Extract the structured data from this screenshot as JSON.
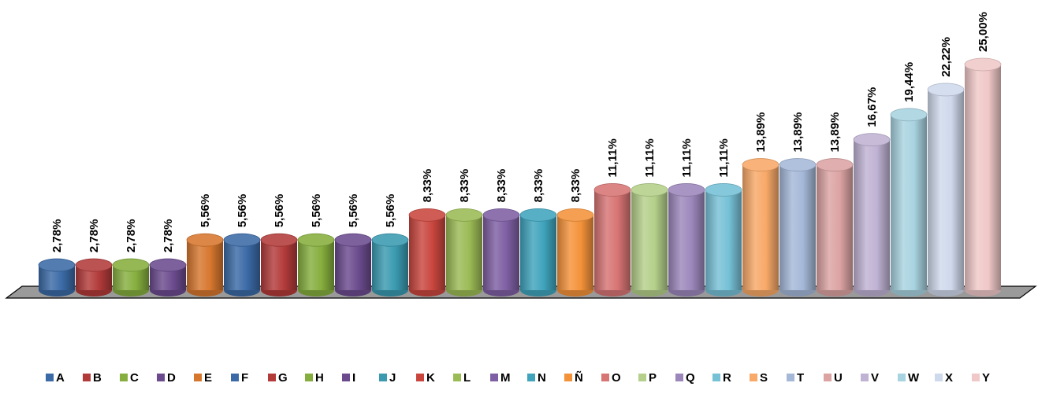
{
  "chart_data": {
    "type": "bar",
    "style": "3d-cylinder",
    "title": "",
    "xlabel": "",
    "ylabel": "",
    "ylim": [
      0,
      25
    ],
    "grid": false,
    "legend_position": "bottom",
    "categories": [
      "A",
      "B",
      "C",
      "D",
      "E",
      "F",
      "G",
      "H",
      "I",
      "J",
      "K",
      "L",
      "M",
      "N",
      "Ñ",
      "O",
      "P",
      "Q",
      "R",
      "S",
      "T",
      "U",
      "V",
      "W",
      "X",
      "Y"
    ],
    "values": [
      2.78,
      2.78,
      2.78,
      2.78,
      5.56,
      5.56,
      5.56,
      5.56,
      5.56,
      5.56,
      8.33,
      8.33,
      8.33,
      8.33,
      8.33,
      11.11,
      11.11,
      11.11,
      11.11,
      13.89,
      13.89,
      13.89,
      16.67,
      19.44,
      22.22,
      25.0
    ],
    "labels": [
      "2,78%",
      "2,78%",
      "2,78%",
      "2,78%",
      "5,56%",
      "5,56%",
      "5,56%",
      "5,56%",
      "5,56%",
      "5,56%",
      "8,33%",
      "8,33%",
      "8,33%",
      "8,33%",
      "8,33%",
      "11,11%",
      "11,11%",
      "11,11%",
      "11,11%",
      "13,89%",
      "13,89%",
      "13,89%",
      "16,67%",
      "19,44%",
      "22,22%",
      "25,00%"
    ],
    "colors": [
      "#3b6aa6",
      "#b23b3a",
      "#86ae3e",
      "#6b4b8e",
      "#d7772e",
      "#3b6aa6",
      "#b23b3a",
      "#86ae3e",
      "#6b4b8e",
      "#3a9ab0",
      "#c9463e",
      "#9bbb55",
      "#7e5fa3",
      "#3fa4bc",
      "#f4923a",
      "#d77474",
      "#b4d08a",
      "#9c87bb",
      "#76c1d6",
      "#f8a968",
      "#a5b8d8",
      "#dca3a3",
      "#bfb2d3",
      "#a8d3e0",
      "#cfd9ec",
      "#f0c8c8"
    ]
  }
}
